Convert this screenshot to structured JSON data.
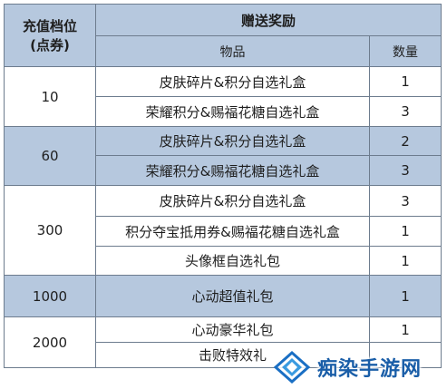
{
  "header": {
    "tier_title_line1": "充值档位",
    "tier_title_line2": "(点券)",
    "reward_title": "赠送奖励",
    "item_col": "物品",
    "qty_col": "数量"
  },
  "tiers": [
    {
      "amount": "10",
      "rows": [
        {
          "item": "皮肤碎片&积分自选礼盒",
          "qty": "1"
        },
        {
          "item": "荣耀积分&赐福花糖自选礼盒",
          "qty": "3"
        }
      ]
    },
    {
      "amount": "60",
      "rows": [
        {
          "item": "皮肤碎片&积分自选礼盒",
          "qty": "2"
        },
        {
          "item": "荣耀积分&赐福花糖自选礼盒",
          "qty": "3"
        }
      ]
    },
    {
      "amount": "300",
      "rows": [
        {
          "item": "皮肤碎片&积分自选礼盒",
          "qty": "3"
        },
        {
          "item": "积分夺宝抵用券&赐福花糖自选礼盒",
          "qty": "1"
        },
        {
          "item": "头像框自选礼包",
          "qty": "1"
        }
      ]
    },
    {
      "amount": "1000",
      "rows": [
        {
          "item": "心动超值礼包",
          "qty": "1"
        }
      ]
    },
    {
      "amount": "2000",
      "rows": [
        {
          "item": "心动豪华礼包",
          "qty": "1"
        },
        {
          "item": "击败特效礼",
          "qty": ""
        }
      ]
    }
  ],
  "watermark": {
    "text": "痴染手游网",
    "logo_icon": "diamond-logo-icon",
    "color": "#1a5ea8"
  },
  "colors": {
    "header_bg": "#b6c8de",
    "border": "#6d7c8e"
  }
}
